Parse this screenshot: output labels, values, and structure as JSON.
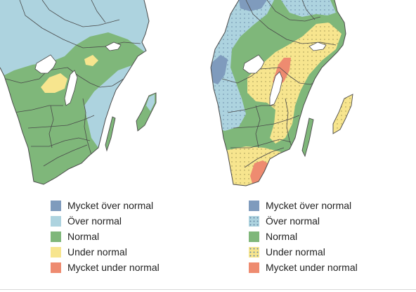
{
  "colors": {
    "mycket_over": "#7f9bbd",
    "over": "#add3df",
    "normal": "#7fb77a",
    "under": "#f7e58e",
    "mycket_under": "#ee8b70",
    "water": "#ffffff",
    "border": "#4a4a4a",
    "dots": "#6a8ca8"
  },
  "maps": [
    {
      "legend": [
        {
          "label": "Mycket över normal",
          "color": "#7f9bbd",
          "dotted": false
        },
        {
          "label": "Över normal",
          "color": "#add3df",
          "dotted": false
        },
        {
          "label": "Normal",
          "color": "#7fb77a",
          "dotted": false
        },
        {
          "label": "Under normal",
          "color": "#f7e58e",
          "dotted": false
        },
        {
          "label": "Mycket under normal",
          "color": "#ee8b70",
          "dotted": false
        }
      ]
    },
    {
      "legend": [
        {
          "label": "Mycket över normal",
          "color": "#7f9bbd",
          "dotted": false
        },
        {
          "label": "Över normal",
          "color": "#add3df",
          "dotted": true
        },
        {
          "label": "Normal",
          "color": "#7fb77a",
          "dotted": false
        },
        {
          "label": "Under normal",
          "color": "#f7e58e",
          "dotted": true
        },
        {
          "label": "Mycket under normal",
          "color": "#ee8b70",
          "dotted": false
        }
      ]
    }
  ]
}
